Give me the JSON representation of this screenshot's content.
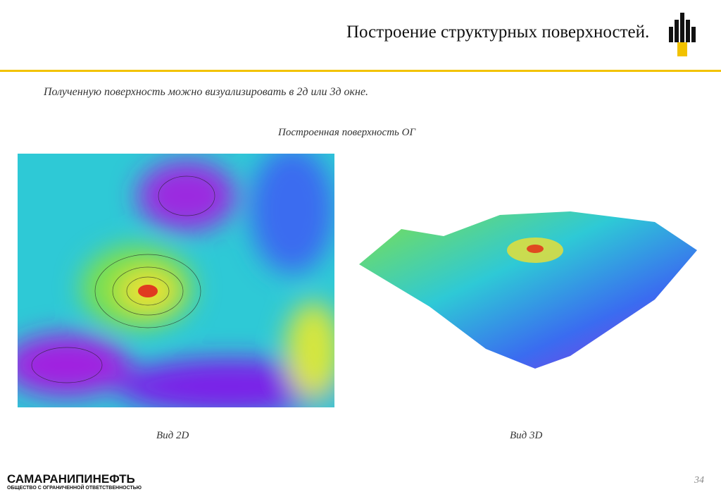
{
  "header": {
    "title": "Построение структурных поверхностей."
  },
  "intro": "Полученную поверхность можно визуализировать в 2д или 3д окне.",
  "figure_title": "Построенная поверхность ОГ",
  "captions": [
    "Вид 2D",
    "Вид 3D"
  ],
  "footer": {
    "company": "САМАРАНИПИНЕФТЬ",
    "company_sub": "ОБЩЕСТВО С ОГРАНИЧЕННОЙ ОТВЕТСТВЕННОСТЬЮ",
    "page": "34"
  }
}
